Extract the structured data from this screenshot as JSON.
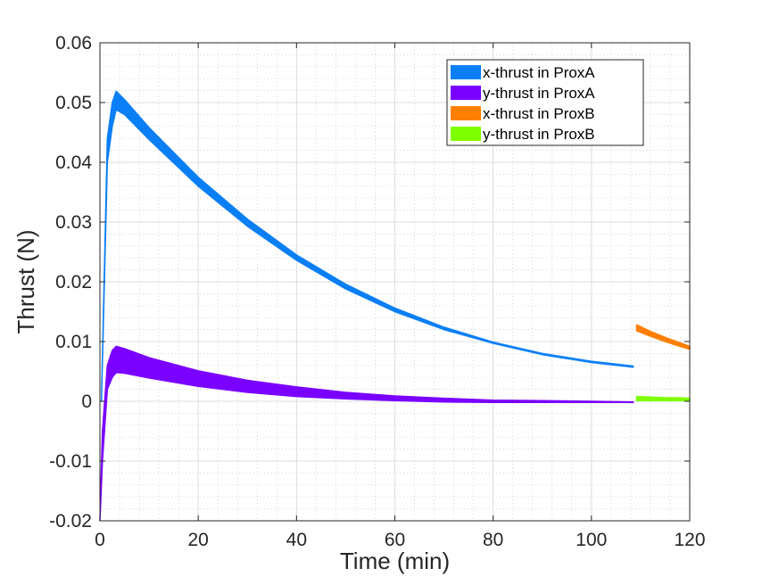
{
  "chart_data": {
    "type": "area",
    "xlabel": "Time (min)",
    "ylabel": "Thrust (N)",
    "xlim": [
      0,
      120
    ],
    "ylim": [
      -0.02,
      0.06
    ],
    "xticks": [
      0,
      20,
      40,
      60,
      80,
      100,
      120
    ],
    "xtick_labels": [
      "0",
      "20",
      "40",
      "60",
      "80",
      "100",
      "120"
    ],
    "yticks": [
      -0.02,
      -0.01,
      0,
      0.01,
      0.02,
      0.03,
      0.04,
      0.05,
      0.06
    ],
    "ytick_labels": [
      "-0.02",
      "-0.01",
      "0",
      "0.01",
      "0.02",
      "0.03",
      "0.04",
      "0.05",
      "0.06"
    ],
    "grid": true,
    "minor_grid": true,
    "legend_position": "top-right",
    "series": [
      {
        "name": "x-thrust in ProxA",
        "color": "#0a7ff5",
        "x": [
          0.3,
          1.5,
          2.5,
          3.3,
          5,
          10,
          20,
          30,
          40,
          50,
          60,
          70,
          80,
          90,
          100,
          108.5
        ],
        "upper": [
          0.0,
          0.044,
          0.05,
          0.0519,
          0.0505,
          0.0458,
          0.0375,
          0.0305,
          0.0245,
          0.0196,
          0.0156,
          0.0124,
          0.0099,
          0.008,
          0.0067,
          0.0059
        ],
        "lower": [
          0.0,
          0.04,
          0.046,
          0.0488,
          0.048,
          0.0438,
          0.036,
          0.0293,
          0.0236,
          0.0188,
          0.015,
          0.012,
          0.0097,
          0.0078,
          0.0065,
          0.0057
        ]
      },
      {
        "name": "y-thrust in ProxA",
        "color": "#7a00ff",
        "x": [
          0.0,
          0.5,
          1.5,
          2.5,
          3.3,
          5,
          10,
          20,
          30,
          40,
          50,
          60,
          70,
          80,
          90,
          100,
          108.5
        ],
        "upper": [
          -0.02,
          -0.005,
          0.006,
          0.0085,
          0.0092,
          0.0088,
          0.0073,
          0.0051,
          0.0035,
          0.0024,
          0.0015,
          0.0009,
          0.0005,
          0.0002,
          0.0001,
          0.0,
          -0.0001
        ],
        "lower": [
          -0.02,
          -0.01,
          0.002,
          0.004,
          0.0048,
          0.0047,
          0.0039,
          0.0025,
          0.0015,
          0.0008,
          0.0004,
          0.0001,
          -0.0001,
          -0.0002,
          -0.0002,
          -0.0002,
          -0.0002
        ]
      },
      {
        "name": "x-thrust in ProxB",
        "color": "#ff7f00",
        "x": [
          109.2,
          112,
          115,
          118,
          120
        ],
        "upper": [
          0.0128,
          0.0117,
          0.0107,
          0.0098,
          0.0092
        ],
        "lower": [
          0.0118,
          0.0109,
          0.01,
          0.0092,
          0.0087
        ]
      },
      {
        "name": "y-thrust in ProxB",
        "color": "#7fff00",
        "x": [
          109.2,
          112,
          115,
          118,
          120
        ],
        "upper": [
          0.0008,
          0.0007,
          0.0006,
          0.0006,
          0.0005
        ],
        "lower": [
          0.0001,
          0.0001,
          0.0001,
          0.0001,
          0.0001
        ]
      }
    ]
  }
}
